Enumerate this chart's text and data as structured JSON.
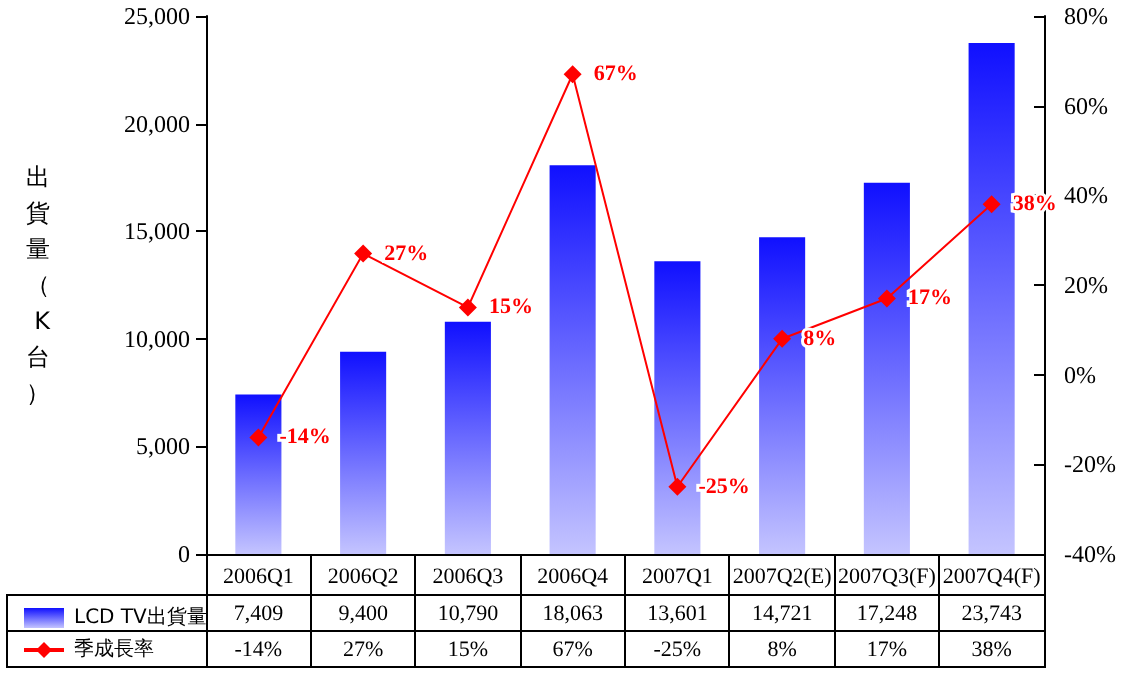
{
  "chart_data": {
    "type": "bar",
    "ylabel": "出貨量（K台）",
    "categories": [
      "2006Q1",
      "2006Q2",
      "2006Q3",
      "2006Q4",
      "2007Q1",
      "2007Q2(E)",
      "2007Q3(F)",
      "2007Q4(F)"
    ],
    "series": [
      {
        "name": "LCD TV出貨量",
        "color": "#1010ff",
        "values": [
          7409,
          9400,
          10790,
          18063,
          13601,
          14721,
          17248,
          23743
        ],
        "value_labels": [
          "7,409",
          "9,400",
          "10,790",
          "18,063",
          "13,601",
          "14,721",
          "17,248",
          "23,743"
        ]
      },
      {
        "name": "季成長率",
        "type": "line",
        "axis": "y2",
        "color": "#ff0000",
        "marker": "diamond",
        "values": [
          -14,
          27,
          15,
          67,
          -25,
          8,
          17,
          38
        ],
        "value_labels": [
          "-14%",
          "27%",
          "15%",
          "67%",
          "-25%",
          "8%",
          "17%",
          "38%"
        ]
      }
    ],
    "ylim": [
      0,
      25000
    ],
    "yticks": [
      0,
      {
        "value": 5000,
        "label": "5,000"
      },
      {
        "value": 10000,
        "label": "10,000"
      },
      {
        "value": 15000,
        "label": "15,000"
      },
      {
        "value": 20000,
        "label": "20,000"
      },
      {
        "value": 25000,
        "label": "25,000"
      }
    ],
    "y2lim": [
      -40,
      80
    ],
    "y2ticks": [
      {
        "value": -40,
        "label": "-40%"
      },
      {
        "value": -20,
        "label": "-20%"
      },
      {
        "value": 0,
        "label": "0%"
      },
      {
        "value": 20,
        "label": "20%"
      },
      {
        "value": 40,
        "label": "40%"
      },
      {
        "value": 60,
        "label": "60%"
      },
      {
        "value": 80,
        "label": "80%"
      }
    ],
    "grid": false,
    "legend": "bottom left"
  }
}
